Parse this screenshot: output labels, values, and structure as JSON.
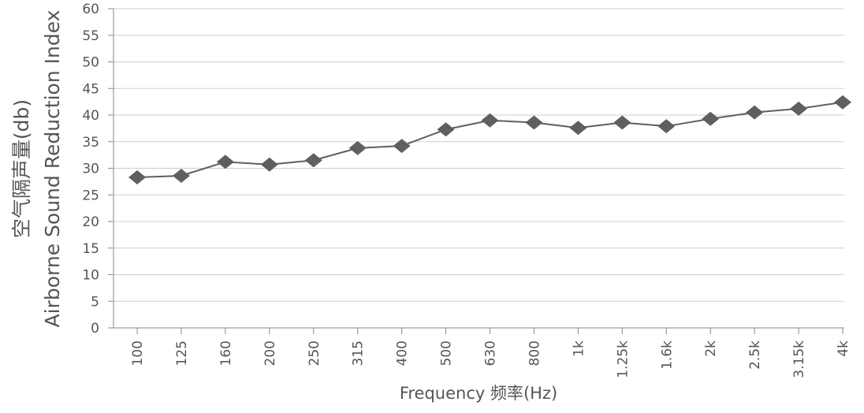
{
  "chart_data": {
    "type": "line",
    "categories": [
      "100",
      "125",
      "160",
      "200",
      "250",
      "315",
      "400",
      "500",
      "630",
      "800",
      "1k",
      "1.25k",
      "1.6k",
      "2k",
      "2.5k",
      "3.15k",
      "4k"
    ],
    "series": [
      {
        "values": [
          28.3,
          28.6,
          31.2,
          30.7,
          31.5,
          33.8,
          34.2,
          37.3,
          39.0,
          38.6,
          37.6,
          38.6,
          37.9,
          39.3,
          40.5,
          41.2,
          42.4
        ]
      }
    ],
    "ylim": [
      0,
      60
    ],
    "yticks": [
      "0",
      "5",
      "10",
      "15",
      "20",
      "25",
      "30",
      "35",
      "40",
      "45",
      "50",
      "55",
      "60"
    ],
    "ylabel_cn": "空气隔声量(db)",
    "ylabel_en": "Airborne Sound Reduction Index",
    "xlabel": "Frequency 频率(Hz)",
    "grid": true,
    "marker": "diamond",
    "colors": {
      "series": "#5f5f5f",
      "grid": "#cfcfcf",
      "axis": "#8a8a8a",
      "text": "#555555"
    }
  }
}
